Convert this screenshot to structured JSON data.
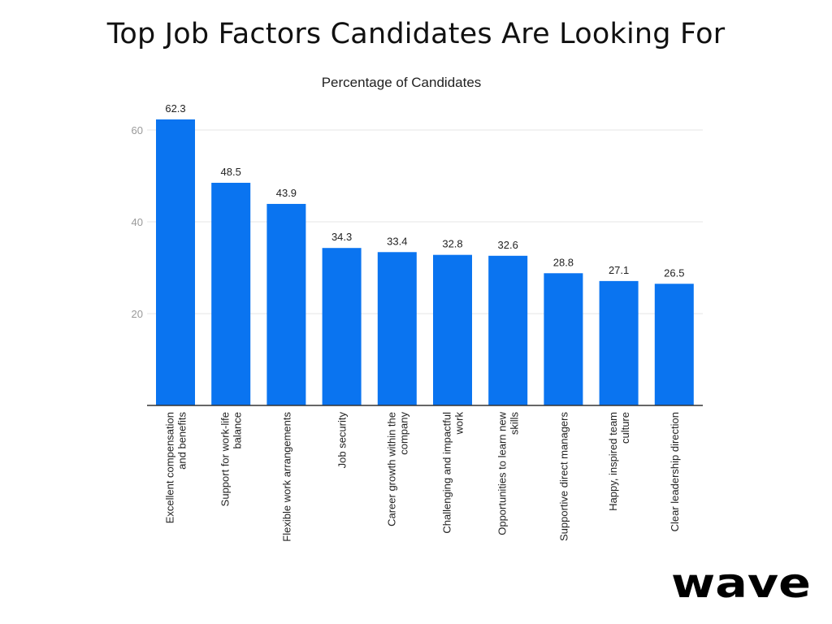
{
  "header": {
    "title": "Top Job Factors Candidates Are Looking For"
  },
  "chart_data": {
    "type": "bar",
    "title": "Top Job Factors Candidates Are Looking For",
    "subtitle": "Percentage of Candidates",
    "xlabel": "",
    "ylabel": "",
    "ylim": [
      0,
      70
    ],
    "yticks": [
      20,
      40,
      60
    ],
    "grid": true,
    "legend": "none",
    "bar_color": "#0a74f0",
    "categories": [
      [
        "Excellent compensation",
        "and benefits"
      ],
      [
        "Support for work-life",
        "balance"
      ],
      [
        "Flexible work arrangements"
      ],
      [
        "Job security"
      ],
      [
        "Career growth within the",
        "company"
      ],
      [
        "Challenging and impactful",
        "work"
      ],
      [
        "Opportunities to learn new",
        "skills"
      ],
      [
        "Supportive direct managers"
      ],
      [
        "Happy, inspired team",
        "culture"
      ],
      [
        "Clear leadership direction"
      ]
    ],
    "values": [
      62.3,
      48.5,
      43.9,
      34.3,
      33.4,
      32.8,
      32.6,
      28.8,
      27.1,
      26.5
    ],
    "value_labels": [
      "62.3",
      "48.5",
      "43.9",
      "34.3",
      "33.4",
      "32.8",
      "32.6",
      "28.8",
      "27.1",
      "26.5"
    ]
  },
  "brand": {
    "logo_text": "wave",
    "logo_color": "#000000"
  }
}
